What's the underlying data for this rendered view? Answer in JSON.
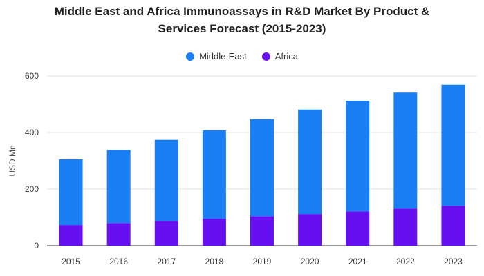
{
  "chart_data": {
    "type": "bar",
    "stacked": true,
    "title_lines": [
      "Middle East and Africa Immunoassays in R&D Market By Product &",
      "Services Forecast (2015-2023)"
    ],
    "xlabel": "",
    "ylabel": "USD Mn",
    "ylim": [
      0,
      600
    ],
    "yticks": [
      "0",
      "200",
      "400",
      "600"
    ],
    "grid": true,
    "legend_position": "top-center",
    "categories": [
      "2015",
      "2016",
      "2017",
      "2018",
      "2019",
      "2020",
      "2021",
      "2022",
      "2023"
    ],
    "series": [
      {
        "name": "Africa",
        "color": "#6610f2",
        "values": [
          73,
          80,
          87,
          95,
          104,
          112,
          121,
          131,
          141
        ]
      },
      {
        "name": "Middle-East",
        "color": "#1a7ef5",
        "values": [
          232,
          258,
          287,
          313,
          343,
          369,
          391,
          410,
          428
        ]
      }
    ]
  },
  "legend": [
    {
      "label": "Middle-East",
      "color": "#1a7ef5"
    },
    {
      "label": "Africa",
      "color": "#6610f2"
    }
  ]
}
